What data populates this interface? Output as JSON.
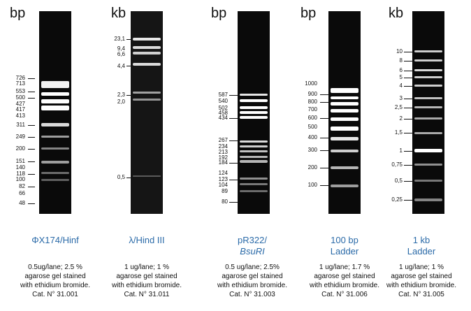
{
  "lanes": [
    {
      "unit": "bp",
      "name_line1": "ΦX174/Hinf",
      "name_line2": "",
      "desc": [
        "0.5ug/lane; 2.5 %",
        "agarose gel stained",
        "with ethidium bromide.",
        "Cat. N° 31.001"
      ],
      "markers": [
        "726",
        "713",
        "553",
        "500",
        "427",
        "417",
        "413",
        "311",
        "249",
        "200",
        "151",
        "140",
        "118",
        "100",
        "82",
        "66",
        "48"
      ]
    },
    {
      "unit": "kb",
      "name_line1": "λ/Hind III",
      "name_line2": "",
      "desc": [
        "1 ug/lane; 1 %",
        "agarose gel stained",
        "with ethidium bromide.",
        "Cat. N° 31.011"
      ],
      "markers": [
        "23,1",
        "9,4",
        "6,6",
        "4,4",
        "2,3",
        "2,0",
        "0,5"
      ]
    },
    {
      "unit": "bp",
      "name_line1": "pR322/",
      "name_line2": "BsuRI",
      "desc": [
        "0.5 ug/lane; 2.5%",
        "agarose gel stained",
        "with ethidium bromide.",
        "Cat. N° 31.003"
      ],
      "markers": [
        "587",
        "540",
        "502",
        "458",
        "434",
        "267",
        "234",
        "213",
        "192",
        "184",
        "124",
        "123",
        "104",
        "89",
        "80"
      ]
    },
    {
      "unit": "bp",
      "name_line1": "100 bp",
      "name_line2": "Ladder",
      "desc": [
        "1 ug/lane; 1.7 %",
        "agarose gel stained",
        "with ethidium bromide.",
        "Cat. N° 31.006"
      ],
      "markers": [
        "1000",
        "900",
        "800",
        "700",
        "600",
        "500",
        "400",
        "300",
        "200",
        "100"
      ]
    },
    {
      "unit": "kb",
      "name_line1": "1 kb",
      "name_line2": "Ladder",
      "desc": [
        "1 ug/lane; 1 %",
        "agarose gel stained",
        "with ethidium bromide.",
        "Cat. N° 31.005"
      ],
      "markers": [
        "10",
        "8",
        "6",
        "5",
        "4",
        "3",
        "2,5",
        "2",
        "1,5",
        "1",
        "0,75",
        "0,5",
        "0,25"
      ]
    }
  ]
}
